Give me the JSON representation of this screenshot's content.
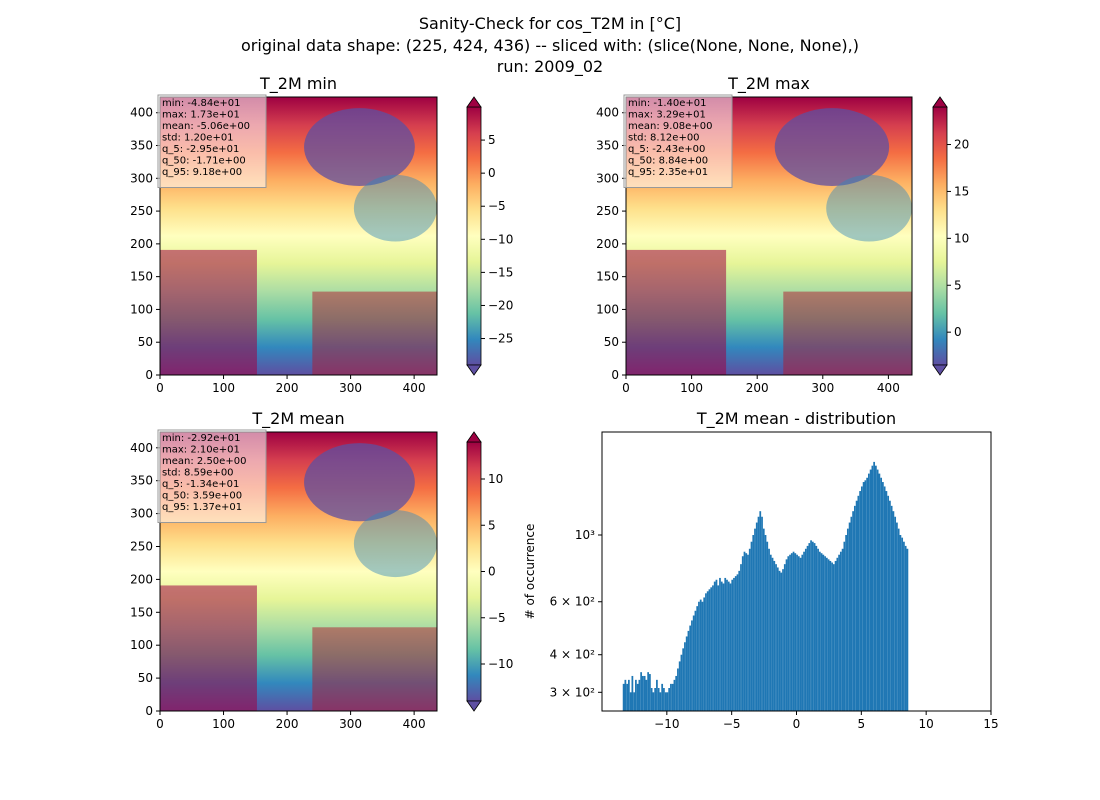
{
  "figure": {
    "title_lines": [
      "Sanity-Check for cos_T2M in [°C]",
      "original data shape: (225, 424, 436) -- sliced with: (slice(None, None, None),)",
      "run: 2009_02"
    ]
  },
  "chart_data": [
    {
      "type": "heatmap",
      "title": "T_2M min",
      "colormap": "Spectral_r",
      "xlim": [
        0,
        436
      ],
      "ylim": [
        0,
        424
      ],
      "xticks": [
        "0",
        "100",
        "200",
        "300",
        "400"
      ],
      "yticks": [
        "0",
        "50",
        "100",
        "150",
        "200",
        "250",
        "300",
        "350",
        "400"
      ],
      "colorbar": {
        "range": [
          -29,
          10
        ],
        "ticks": [
          "−25",
          "−20",
          "−15",
          "−10",
          "−5",
          "0",
          "5"
        ]
      },
      "stats": [
        "min: -4.84e+01",
        "max: 1.73e+01",
        "mean: -5.06e+00",
        "std: 1.20e+01",
        "q_5: -2.95e+01",
        "q_50: -1.71e+00",
        "q_95: 9.18e+00"
      ]
    },
    {
      "type": "heatmap",
      "title": "T_2M max",
      "colormap": "Spectral_r",
      "xlim": [
        0,
        436
      ],
      "ylim": [
        0,
        424
      ],
      "xticks": [
        "0",
        "100",
        "200",
        "300",
        "400"
      ],
      "yticks": [
        "0",
        "50",
        "100",
        "150",
        "200",
        "250",
        "300",
        "350",
        "400"
      ],
      "colorbar": {
        "range": [
          -3.5,
          24
        ],
        "ticks": [
          "0",
          "5",
          "10",
          "15",
          "20"
        ]
      },
      "stats": [
        "min: -1.40e+01",
        "max: 3.29e+01",
        "mean: 9.08e+00",
        "std: 8.12e+00",
        "q_5: -2.43e+00",
        "q_50: 8.84e+00",
        "q_95: 2.35e+01"
      ]
    },
    {
      "type": "heatmap",
      "title": "T_2M mean",
      "colormap": "Spectral_r",
      "xlim": [
        0,
        436
      ],
      "ylim": [
        0,
        424
      ],
      "xticks": [
        "0",
        "100",
        "200",
        "300",
        "400"
      ],
      "yticks": [
        "0",
        "50",
        "100",
        "150",
        "200",
        "250",
        "300",
        "350",
        "400"
      ],
      "colorbar": {
        "range": [
          -14,
          14
        ],
        "ticks": [
          "−10",
          "−5",
          "0",
          "5",
          "10"
        ]
      },
      "stats": [
        "min: -2.92e+01",
        "max: 2.10e+01",
        "mean: 2.50e+00",
        "std: 8.59e+00",
        "q_5: -1.34e+01",
        "q_50: 3.59e+00",
        "q_95: 1.37e+01"
      ]
    },
    {
      "type": "bar",
      "title": "T_2M mean - distribution",
      "ylabel": "# of occurrence",
      "yscale": "log",
      "color": "#1f77b4",
      "xlim": [
        -15,
        15
      ],
      "ylim": [
        260,
        2200
      ],
      "xticks": [
        -10,
        -5,
        0,
        5,
        10,
        15
      ],
      "xtick_labels": [
        "−10",
        "−5",
        "0",
        "5",
        "10",
        "15"
      ],
      "yticks": [
        300,
        400,
        600,
        1000
      ],
      "ytick_labels": [
        "3 × 10²",
        "4 × 10²",
        "6 × 10²",
        "10³"
      ],
      "bins": {
        "start": -13.4,
        "step": 0.1351
      },
      "counts": [
        320,
        330,
        320,
        330,
        300,
        340,
        300,
        330,
        320,
        330,
        350,
        340,
        340,
        330,
        350,
        345,
        310,
        300,
        310,
        330,
        310,
        300,
        320,
        310,
        300,
        300,
        310,
        320,
        320,
        330,
        340,
        360,
        380,
        400,
        420,
        440,
        460,
        480,
        500,
        520,
        540,
        560,
        580,
        600,
        610,
        600,
        620,
        640,
        650,
        660,
        670,
        680,
        700,
        710,
        680,
        720,
        700,
        690,
        720,
        710,
        700,
        690,
        710,
        720,
        730,
        740,
        760,
        800,
        850,
        880,
        870,
        860,
        900,
        950,
        1000,
        1050,
        1100,
        1150,
        1200,
        1150,
        1050,
        1000,
        950,
        900,
        860,
        840,
        820,
        800,
        780,
        760,
        750,
        770,
        800,
        830,
        850,
        860,
        870,
        880,
        870,
        860,
        850,
        840,
        860,
        880,
        900,
        920,
        940,
        960,
        950,
        940,
        920,
        900,
        880,
        870,
        860,
        850,
        840,
        830,
        820,
        810,
        800,
        820,
        840,
        860,
        880,
        900,
        950,
        1000,
        1050,
        1100,
        1150,
        1200,
        1250,
        1300,
        1350,
        1400,
        1450,
        1500,
        1520,
        1550,
        1600,
        1650,
        1700,
        1750,
        1700,
        1650,
        1600,
        1550,
        1500,
        1450,
        1400,
        1350,
        1300,
        1250,
        1200,
        1150,
        1100,
        1050,
        1000,
        980,
        950,
        920,
        900
      ]
    }
  ]
}
